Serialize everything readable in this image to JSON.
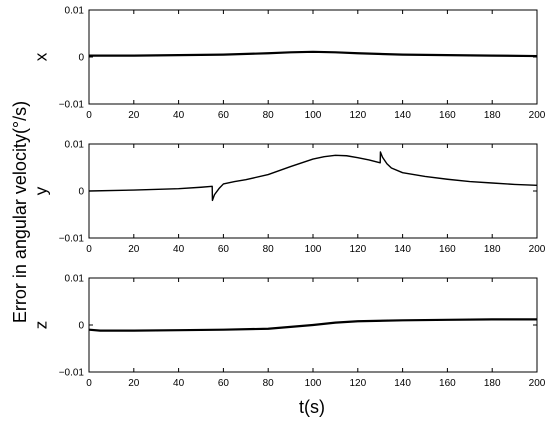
{
  "ylabel": "Error in angular velocity(°/s)",
  "xlabel": "t(s)",
  "chart_data": [
    {
      "type": "line",
      "panel_label": "x",
      "xlim": [
        0,
        200
      ],
      "ylim": [
        -0.01,
        0.01
      ],
      "xticks": [
        0,
        20,
        40,
        60,
        80,
        100,
        120,
        140,
        160,
        180,
        200
      ],
      "yticks": [
        -0.01,
        0,
        0.01
      ],
      "xtick_labels": [
        "0",
        "20",
        "40",
        "60",
        "80",
        "100",
        "120",
        "140",
        "160",
        "180",
        "200"
      ],
      "ytick_labels": [
        "−0.01",
        "0",
        "0.01"
      ],
      "series": [
        {
          "x": [
            0,
            20,
            40,
            60,
            80,
            90,
            100,
            110,
            120,
            140,
            160,
            180,
            200
          ],
          "y": [
            0.0003,
            0.0003,
            0.0004,
            0.0005,
            0.0008,
            0.001,
            0.0011,
            0.001,
            0.0008,
            0.0005,
            0.0004,
            0.0003,
            0.0002
          ]
        }
      ]
    },
    {
      "type": "line",
      "panel_label": "y",
      "xlim": [
        0,
        200
      ],
      "ylim": [
        -0.01,
        0.01
      ],
      "xticks": [
        0,
        20,
        40,
        60,
        80,
        100,
        120,
        140,
        160,
        180,
        200
      ],
      "yticks": [
        -0.01,
        0,
        0.01
      ],
      "xtick_labels": [
        "0",
        "20",
        "40",
        "60",
        "80",
        "100",
        "120",
        "140",
        "160",
        "180",
        "200"
      ],
      "ytick_labels": [
        "−0.01",
        "0",
        "0.01"
      ],
      "series": [
        {
          "x": [
            0,
            20,
            40,
            50,
            55,
            55.1,
            56,
            58,
            60,
            65,
            70,
            80,
            90,
            100,
            105,
            110,
            115,
            120,
            125,
            130,
            130.1,
            131,
            133,
            135,
            140,
            150,
            160,
            170,
            180,
            190,
            200
          ],
          "y": [
            0,
            0.0002,
            0.0005,
            0.0008,
            0.001,
            -0.002,
            -0.0008,
            0.0005,
            0.0015,
            0.002,
            0.0024,
            0.0035,
            0.0052,
            0.0068,
            0.0073,
            0.0076,
            0.0075,
            0.0071,
            0.0066,
            0.006,
            0.0083,
            0.0072,
            0.0058,
            0.0049,
            0.0039,
            0.0031,
            0.0025,
            0.002,
            0.0017,
            0.0014,
            0.0012
          ]
        }
      ]
    },
    {
      "type": "line",
      "panel_label": "z",
      "xlim": [
        0,
        200
      ],
      "ylim": [
        -0.01,
        0.01
      ],
      "xticks": [
        0,
        20,
        40,
        60,
        80,
        100,
        120,
        140,
        160,
        180,
        200
      ],
      "yticks": [
        -0.01,
        0,
        0.01
      ],
      "xtick_labels": [
        "0",
        "20",
        "40",
        "60",
        "80",
        "100",
        "120",
        "140",
        "160",
        "180",
        "200"
      ],
      "ytick_labels": [
        "−0.01",
        "0",
        "0.01"
      ],
      "series": [
        {
          "x": [
            0,
            5,
            20,
            40,
            60,
            80,
            90,
            100,
            110,
            120,
            140,
            160,
            180,
            200
          ],
          "y": [
            -0.001,
            -0.0012,
            -0.0012,
            -0.0011,
            -0.001,
            -0.0008,
            -0.0004,
            0,
            0.0005,
            0.0008,
            0.001,
            0.0011,
            0.0012,
            0.0012
          ]
        }
      ]
    }
  ]
}
